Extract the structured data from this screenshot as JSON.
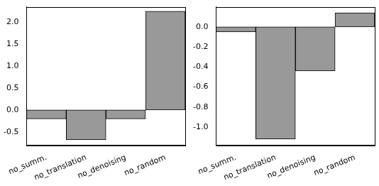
{
  "chart_data": [
    {
      "type": "bar",
      "categories": [
        "no_summ.",
        "no_translation",
        "no_denoising",
        "no_random"
      ],
      "values": [
        -0.2,
        -0.68,
        -0.2,
        2.25
      ],
      "color": "#999999",
      "ylim": [
        -0.8,
        2.35
      ],
      "yticks": [
        -0.5,
        {
          "value": 0,
          "label": "0.0"
        },
        0.5,
        {
          "value": 1,
          "label": "1.0"
        },
        1.5,
        {
          "value": 2,
          "label": "2.0"
        }
      ],
      "grid": false
    },
    {
      "type": "bar",
      "categories": [
        "no_summ.",
        "no_translation",
        "no_denoising",
        "no_random"
      ],
      "values": [
        -0.05,
        -1.12,
        -0.44,
        0.14
      ],
      "color": "#999999",
      "ylim": [
        -1.18,
        0.2
      ],
      "yticks": [
        {
          "value": -1,
          "label": "-1.0"
        },
        -0.8,
        -0.6,
        -0.4,
        -0.2,
        {
          "value": 0,
          "label": "0.0"
        }
      ],
      "grid": false
    }
  ]
}
